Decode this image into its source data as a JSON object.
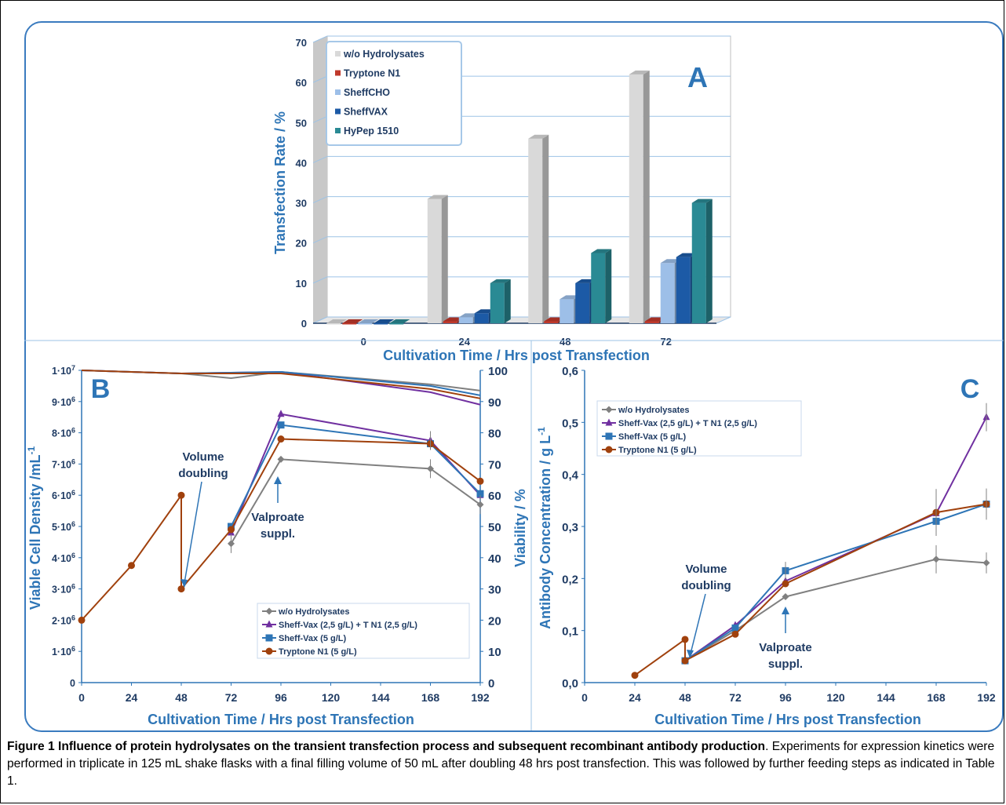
{
  "chart_data": [
    {
      "panel": "A",
      "type": "bar",
      "ylabel": "Transfection Rate / %",
      "xlabel": "Cultivation Time / Hrs post Transfection",
      "ylim": [
        0,
        70
      ],
      "yticks": [
        "0",
        "10",
        "20",
        "30",
        "40",
        "50",
        "60",
        "70"
      ],
      "categories": [
        "0",
        "24",
        "48",
        "72"
      ],
      "legend_position": "top-left",
      "series": [
        {
          "name": "w/o Hydrolysates",
          "color": "#d9d9d9",
          "values": [
            0,
            31,
            46,
            62
          ]
        },
        {
          "name": "Tryptone N1",
          "color": "#c0392b",
          "values": [
            0,
            0.5,
            0.5,
            0.5
          ]
        },
        {
          "name": "SheffCHO",
          "color": "#9dbfe8",
          "values": [
            0,
            1.5,
            6,
            15
          ]
        },
        {
          "name": "SheffVAX",
          "color": "#1c5aa6",
          "values": [
            0,
            2.5,
            10,
            16.5
          ]
        },
        {
          "name": "HyPep 1510",
          "color": "#2a8a94",
          "values": [
            0,
            10,
            17.5,
            30
          ]
        }
      ]
    },
    {
      "panel": "B",
      "type": "line",
      "ylabel": "Viable Cell Density /mL",
      "ylabel_sup": "-1",
      "y2label": "Viability / %",
      "xlabel": "Cultivation Time / Hrs post Transfection",
      "x": [
        0,
        24,
        48,
        72,
        96,
        120,
        144,
        168,
        192
      ],
      "xlim": [
        0,
        192
      ],
      "ylim": [
        0,
        10000000
      ],
      "y2lim": [
        0,
        100
      ],
      "yticks": [
        {
          "base": "0",
          "exp": ""
        },
        {
          "base": "1·10",
          "exp": "6"
        },
        {
          "base": "2·10",
          "exp": "6"
        },
        {
          "base": "3·10",
          "exp": "6"
        },
        {
          "base": "4·10",
          "exp": "6"
        },
        {
          "base": "5·10",
          "exp": "6"
        },
        {
          "base": "6·10",
          "exp": "6"
        },
        {
          "base": "7·10",
          "exp": "6"
        },
        {
          "base": "8·10",
          "exp": "6"
        },
        {
          "base": "9·10",
          "exp": "6"
        },
        {
          "base": "1·10",
          "exp": "7"
        }
      ],
      "y2ticks": [
        "0",
        "10",
        "20",
        "30",
        "40",
        "50",
        "60",
        "70",
        "80",
        "90",
        "100"
      ],
      "legend_position": "bottom-right",
      "annotations": [
        {
          "text": "Volume",
          "text2": "doubling"
        },
        {
          "text": "Valproate",
          "text2": "suppl."
        }
      ],
      "series": [
        {
          "name": "w/o Hydrolysates",
          "color": "#808080",
          "marker": "diamond",
          "points": [
            [
              72,
              4450000
            ],
            [
              96,
              7150000
            ],
            [
              168,
              6850000
            ],
            [
              192,
              5700000
            ]
          ],
          "viability": [
            [
              0,
              100
            ],
            [
              48,
              99
            ],
            [
              72,
              97.5
            ],
            [
              96,
              99.5
            ],
            [
              168,
              95.5
            ],
            [
              192,
              93.5
            ]
          ]
        },
        {
          "name": "Sheff-Vax (2,5 g/L) + T N1 (2,5 g/L)",
          "color": "#7030a0",
          "marker": "triangle",
          "points": [
            [
              72,
              4800000
            ],
            [
              96,
              8600000
            ],
            [
              168,
              7750000
            ],
            [
              192,
              6000000
            ]
          ],
          "viability": [
            [
              0,
              100
            ],
            [
              48,
              99
            ],
            [
              96,
              99.5
            ],
            [
              168,
              93
            ],
            [
              192,
              89
            ]
          ]
        },
        {
          "name": "Sheff-Vax (5 g/L)",
          "color": "#2e75b6",
          "marker": "square",
          "points": [
            [
              72,
              5000000
            ],
            [
              96,
              8250000
            ],
            [
              168,
              7650000
            ],
            [
              192,
              6050000
            ]
          ],
          "viability": [
            [
              0,
              100
            ],
            [
              48,
              99
            ],
            [
              96,
              99.5
            ],
            [
              168,
              95
            ],
            [
              192,
              92
            ]
          ]
        },
        {
          "name": "Tryptone N1 (5 g/L)",
          "color": "#a0410d",
          "marker": "circle",
          "points": [
            [
              0,
              2000000
            ],
            [
              24,
              3750000
            ],
            [
              48,
              6000000
            ],
            [
              48,
              3000000
            ],
            [
              72,
              4900000
            ],
            [
              96,
              7800000
            ],
            [
              168,
              7650000
            ],
            [
              192,
              6450000
            ]
          ],
          "viability": [
            [
              0,
              100
            ],
            [
              48,
              99
            ],
            [
              96,
              99
            ],
            [
              168,
              94
            ],
            [
              192,
              91
            ]
          ]
        }
      ]
    },
    {
      "panel": "C",
      "type": "line",
      "ylabel": "Antibody Concentration  / g L",
      "ylabel_sup": "-1",
      "xlabel": "Cultivation Time / Hrs post Transfection",
      "x": [
        0,
        24,
        48,
        72,
        96,
        120,
        144,
        168,
        192
      ],
      "xlim": [
        0,
        192
      ],
      "ylim": [
        0,
        0.6
      ],
      "yticks": [
        "0,0",
        "0,1",
        "0,2",
        "0,3",
        "0,4",
        "0,5",
        "0,6"
      ],
      "legend_position": "top-left",
      "annotations": [
        {
          "text": "Volume",
          "text2": "doubling"
        },
        {
          "text": "Valproate",
          "text2": "suppl."
        }
      ],
      "series": [
        {
          "name": "w/o Hydrolysates",
          "color": "#808080",
          "marker": "diamond",
          "points": [
            [
              48,
              0.042
            ],
            [
              72,
              0.1
            ],
            [
              96,
              0.165
            ],
            [
              168,
              0.237
            ],
            [
              192,
              0.23
            ]
          ]
        },
        {
          "name": "Sheff-Vax (2,5 g/L) + T N1 (2,5 g/L)",
          "color": "#7030a0",
          "marker": "triangle",
          "points": [
            [
              48,
              0.042
            ],
            [
              72,
              0.11
            ],
            [
              96,
              0.195
            ],
            [
              168,
              0.325
            ],
            [
              192,
              0.51
            ]
          ]
        },
        {
          "name": "Sheff-Vax (5 g/L)",
          "color": "#2e75b6",
          "marker": "square",
          "points": [
            [
              48,
              0.042
            ],
            [
              72,
              0.105
            ],
            [
              96,
              0.215
            ],
            [
              168,
              0.31
            ],
            [
              192,
              0.343
            ]
          ]
        },
        {
          "name": "Tryptone N1 (5 g/L)",
          "color": "#a0410d",
          "marker": "circle",
          "points": [
            [
              24,
              0.014
            ],
            [
              48,
              0.083
            ],
            [
              48,
              0.042
            ],
            [
              72,
              0.093
            ],
            [
              96,
              0.19
            ],
            [
              168,
              0.327
            ],
            [
              192,
              0.343
            ]
          ]
        }
      ]
    }
  ],
  "caption": {
    "title": "Figure 1 Influence of protein hydrolysates on the transient transfection process and subsequent recombinant antibody production",
    "text": ". Experiments for expression kinetics were performed in triplicate in 125 mL shake flasks with a final filling volume of 50 mL after doubling 48 hrs post transfection. This was followed by further feeding steps as indicated in Table 1."
  }
}
